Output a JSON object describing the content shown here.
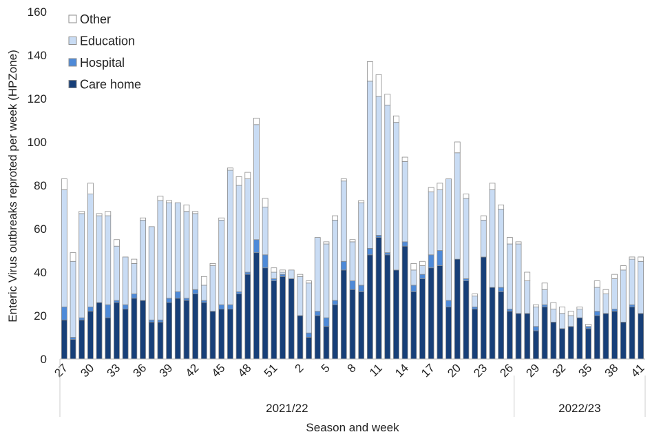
{
  "chart_data": {
    "type": "bar",
    "stacked": true,
    "title": "",
    "xlabel": "Season and week",
    "ylabel": "Enteric Virus outbreaks reproted per week (HPZone)",
    "ylim": [
      0,
      160
    ],
    "yticks": [
      0,
      20,
      40,
      60,
      80,
      100,
      120,
      140,
      160
    ],
    "grid": false,
    "legend_position": "top-left",
    "seasons": [
      {
        "label": "2021/22",
        "weeks": 52
      },
      {
        "label": "2022/23",
        "weeks": 15
      }
    ],
    "categories": [
      "27",
      "28",
      "29",
      "30",
      "31",
      "32",
      "33",
      "34",
      "35",
      "36",
      "37",
      "38",
      "39",
      "40",
      "41",
      "42",
      "43",
      "44",
      "45",
      "46",
      "47",
      "48",
      "49",
      "50",
      "51",
      "52",
      "1",
      "2",
      "3",
      "4",
      "5",
      "6",
      "7",
      "8",
      "9",
      "10",
      "11",
      "12",
      "13",
      "14",
      "15",
      "16",
      "17",
      "18",
      "19",
      "20",
      "21",
      "22",
      "23",
      "24",
      "25",
      "26",
      "27",
      "28",
      "29",
      "30",
      "31",
      "32",
      "33",
      "34",
      "35",
      "36",
      "37",
      "38",
      "39",
      "40",
      "41"
    ],
    "tick_every": 3,
    "series": [
      {
        "name": "Care home",
        "color": "#173f78",
        "values": [
          18,
          9,
          18,
          22,
          26,
          19,
          26,
          23,
          28,
          27,
          17,
          17,
          26,
          28,
          27,
          30,
          26,
          22,
          23,
          23,
          30,
          39,
          49,
          42,
          36,
          38,
          37,
          20,
          10,
          20,
          15,
          25,
          41,
          32,
          31,
          48,
          56,
          48,
          41,
          52,
          31,
          37,
          42,
          43,
          24,
          46,
          36,
          23,
          47,
          33,
          31,
          22,
          21,
          21,
          13,
          24,
          17,
          14,
          15,
          19,
          14,
          20,
          21,
          22,
          17,
          24,
          21
        ]
      },
      {
        "name": "Hospital",
        "color": "#4e8ad8",
        "values": [
          6,
          1,
          1,
          2,
          0,
          6,
          1,
          2,
          2,
          0,
          1,
          1,
          2,
          3,
          1,
          2,
          1,
          0,
          2,
          2,
          1,
          1,
          6,
          6,
          1,
          1,
          0,
          0,
          2,
          2,
          4,
          2,
          4,
          4,
          3,
          3,
          1,
          1,
          0,
          2,
          3,
          2,
          6,
          7,
          3,
          0,
          1,
          1,
          0,
          0,
          2,
          1,
          0,
          0,
          2,
          1,
          0,
          0,
          0,
          0,
          1,
          2,
          0,
          1,
          0,
          1,
          0
        ]
      },
      {
        "name": "Education",
        "color": "#c9dcf4",
        "values": [
          54,
          35,
          48,
          52,
          40,
          41,
          25,
          22,
          14,
          37,
          43,
          55,
          44,
          41,
          40,
          35,
          7,
          21,
          39,
          62,
          49,
          43,
          53,
          22,
          3,
          1,
          4,
          18,
          23,
          34,
          34,
          37,
          37,
          18,
          38,
          77,
          64,
          68,
          68,
          37,
          7,
          4,
          29,
          28,
          56,
          49,
          37,
          5,
          17,
          45,
          36,
          30,
          32,
          15,
          9,
          7,
          6,
          7,
          5,
          4,
          0,
          11,
          9,
          14,
          24,
          21,
          24
        ]
      },
      {
        "name": "Other",
        "color": "#ffffff",
        "values": [
          5,
          4,
          1,
          5,
          1,
          2,
          3,
          0,
          2,
          1,
          0,
          2,
          1,
          0,
          3,
          1,
          4,
          1,
          1,
          1,
          4,
          3,
          3,
          4,
          2,
          1,
          0,
          1,
          1,
          0,
          1,
          2,
          1,
          1,
          1,
          9,
          10,
          5,
          3,
          2,
          3,
          2,
          2,
          3,
          0,
          5,
          2,
          1,
          2,
          3,
          2,
          3,
          1,
          4,
          1,
          3,
          3,
          3,
          2,
          1,
          1,
          3,
          2,
          2,
          2,
          1,
          2
        ]
      }
    ]
  }
}
